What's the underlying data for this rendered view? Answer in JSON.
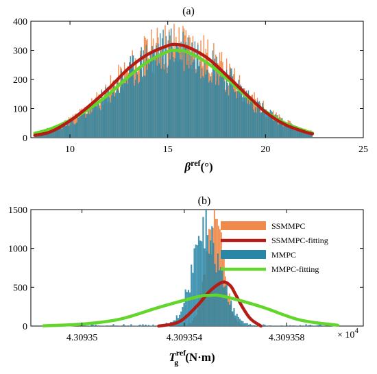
{
  "chart_data": [
    {
      "type": "histogram+line",
      "title": "(a)",
      "xlabel": {
        "symbol": "β",
        "sup": "ref",
        "unit": "(°)"
      },
      "ylabel": "",
      "xlim": [
        8,
        25
      ],
      "ylim": [
        0,
        400
      ],
      "xticks": [
        10,
        15,
        20,
        25
      ],
      "yticks": [
        0,
        100,
        200,
        300,
        400
      ],
      "grid": false,
      "series": [
        {
          "name": "SSMMPC",
          "kind": "hist",
          "color": "#ef8a4c",
          "hist": {
            "mean": 15.4,
            "sd": 2.95,
            "peak": 320,
            "xmin": 8.2,
            "xmax": 22.4,
            "bins": 280,
            "seed": 11
          }
        },
        {
          "name": "MMPC",
          "kind": "hist",
          "color": "#2a86a6",
          "hist": {
            "mean": 15.45,
            "sd": 2.9,
            "peak": 305,
            "xmin": 8.2,
            "xmax": 22.4,
            "bins": 280,
            "seed": 23
          }
        },
        {
          "name": "MMPC-fitting",
          "kind": "line",
          "color": "#63d62c",
          "x": [
            8.2,
            9,
            10,
            11,
            12,
            13,
            14,
            15,
            15.4,
            16,
            17,
            18,
            19,
            20,
            21,
            22,
            22.4
          ],
          "y": [
            15,
            30,
            60,
            100,
            150,
            210,
            262,
            296,
            300,
            294,
            258,
            204,
            144,
            90,
            50,
            24,
            16
          ]
        },
        {
          "name": "SSMMPC-fitting",
          "kind": "line",
          "color": "#b51d14",
          "x": [
            8.2,
            9,
            10,
            11,
            12,
            13,
            14,
            15,
            15.4,
            16,
            17,
            18,
            19,
            20,
            21,
            22,
            22.4
          ],
          "y": [
            8,
            20,
            58,
            110,
            170,
            238,
            287,
            316,
            320,
            312,
            275,
            215,
            150,
            88,
            45,
            20,
            13
          ]
        }
      ]
    },
    {
      "type": "histogram+line",
      "title": "(b)",
      "xlabel": {
        "symbol": "T",
        "sub": "g",
        "sup": "ref",
        "unit": "(N·m)"
      },
      "ylabel": "",
      "xlim": [
        4.309348,
        4.309361
      ],
      "ylim": [
        0,
        1500
      ],
      "xticks": [
        4.30935,
        4.309354,
        4.309358
      ],
      "xtick_labels": [
        "4.30935",
        "4.309354",
        "4.309358"
      ],
      "yticks": [
        0,
        500,
        1000,
        1500
      ],
      "x_multiplier": "× 10",
      "x_multiplier_exp": "4",
      "grid": false,
      "legend_position": "top-right",
      "legend": [
        "SSMMPC",
        "SSMMPC-fitting",
        "MMPC",
        "MMPC-fitting"
      ],
      "series": [
        {
          "name": "SSMMPC",
          "kind": "hist",
          "color": "#ef8a4c",
          "hist": {
            "mean": 4.3093552,
            "sd": 3.6e-07,
            "peak": 1230,
            "xmin": 4.3093535,
            "xmax": 4.3093567,
            "bins": 60,
            "seed": 5
          }
        },
        {
          "name": "MMPC",
          "kind": "hist",
          "color": "#2a86a6",
          "hist": {
            "mean": 4.3093549,
            "sd": 5.5e-07,
            "peak": 1170,
            "xmin": 4.3093485,
            "xmax": 4.30936,
            "bins": 200,
            "seed": 9,
            "tail": 25
          }
        },
        {
          "name": "SSMMPC-fitting",
          "kind": "line",
          "color": "#b51d14",
          "x": [
            4.309353,
            4.3093538,
            4.3093545,
            4.309355,
            4.3093555,
            4.3093558,
            4.309356,
            4.3093563,
            4.3093566,
            4.309357
          ],
          "y": [
            0,
            55,
            260,
            450,
            565,
            520,
            410,
            230,
            90,
            0
          ]
        },
        {
          "name": "MMPC-fitting",
          "kind": "line",
          "color": "#63d62c",
          "x": [
            4.3093485,
            4.30935,
            4.3093515,
            4.309353,
            4.3093545,
            4.309355,
            4.3093555,
            4.309357,
            4.3093585,
            4.30936
          ],
          "y": [
            3,
            25,
            90,
            240,
            375,
            395,
            385,
            250,
            80,
            10
          ]
        }
      ]
    }
  ]
}
